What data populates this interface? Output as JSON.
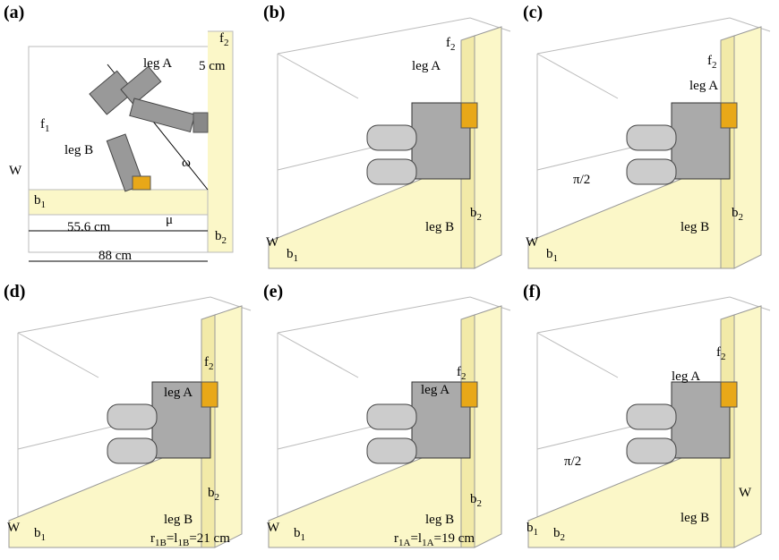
{
  "panels": [
    {
      "label": "(a)",
      "annotations": [
        [
          "f",
          "2"
        ],
        [
          "5 cm"
        ],
        [
          "leg A"
        ],
        [
          "f",
          "1"
        ],
        [
          "leg B"
        ],
        [
          "ω"
        ],
        [
          "W"
        ],
        [
          "b",
          "1"
        ],
        [
          "55.6 cm"
        ],
        [
          "μ"
        ],
        [
          "b",
          "2"
        ],
        [
          "88 cm"
        ]
      ]
    },
    {
      "label": "(b)",
      "annotations": [
        [
          "f",
          "2"
        ],
        [
          "leg A"
        ],
        [
          "leg B"
        ],
        [
          "W"
        ],
        [
          "b",
          "1"
        ],
        [
          "b",
          "2"
        ]
      ]
    },
    {
      "label": "(c)",
      "annotations": [
        [
          "f",
          "2"
        ],
        [
          "leg A"
        ],
        [
          "π/2"
        ],
        [
          "leg B"
        ],
        [
          "W"
        ],
        [
          "b",
          "1"
        ],
        [
          "b",
          "2"
        ]
      ]
    },
    {
      "label": "(d)",
      "annotations": [
        [
          "f",
          "2"
        ],
        [
          "leg A"
        ],
        [
          "leg B"
        ],
        [
          "b",
          "2"
        ],
        [
          "W"
        ],
        [
          "b",
          "1"
        ],
        [
          "r",
          "1B",
          "=l",
          "1B",
          "=21 cm"
        ]
      ]
    },
    {
      "label": "(e)",
      "annotations": [
        [
          "f",
          "2"
        ],
        [
          "leg A"
        ],
        [
          "leg B"
        ],
        [
          "b",
          "2"
        ],
        [
          "W"
        ],
        [
          "b",
          "1"
        ],
        [
          "r",
          "1A",
          "=l",
          "1A",
          "=19 cm"
        ]
      ]
    },
    {
      "label": "(f)",
      "annotations": [
        [
          "f",
          "2"
        ],
        [
          "leg A"
        ],
        [
          "π/2"
        ],
        [
          "leg B"
        ],
        [
          "W"
        ],
        [
          "b",
          "1"
        ],
        [
          "b",
          "2"
        ]
      ]
    }
  ]
}
